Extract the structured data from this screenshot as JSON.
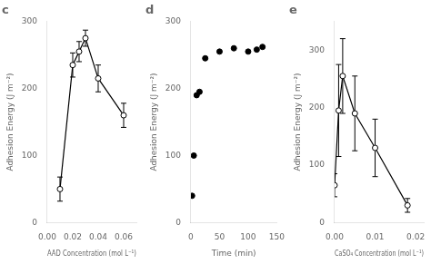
{
  "chart_data": [
    {
      "type": "line",
      "title": "c",
      "x": [
        0.01,
        0.02,
        0.025,
        0.03,
        0.04,
        0.06
      ],
      "values": [
        50,
        235,
        255,
        275,
        215,
        160
      ],
      "yerr": [
        18,
        18,
        15,
        12,
        20,
        18
      ],
      "xlabel": "AAD Concentration (mol L⁻¹)",
      "ylabel": "Adhesion Energy (J m⁻²)",
      "xlim": [
        0,
        0.07
      ],
      "ylim": [
        0,
        300
      ],
      "xticks": [
        {
          "value": 0,
          "label": "0.00"
        },
        0.02,
        0.04,
        0.06
      ],
      "yticks": [
        0,
        100,
        200,
        300
      ],
      "color": "#000000",
      "marker": "open_circle",
      "line_style": "solid",
      "grid": false
    },
    {
      "type": "scatter",
      "title": "d",
      "x": [
        2,
        5,
        10,
        15,
        25,
        50,
        75,
        100,
        115,
        125
      ],
      "values": [
        40,
        100,
        190,
        195,
        245,
        255,
        260,
        255,
        258,
        262
      ],
      "xlabel": "Time (min)",
      "ylabel": "Adhesion Energy (J m⁻²)",
      "xlim": [
        0,
        150
      ],
      "ylim": [
        0,
        300
      ],
      "xticks": [
        0,
        50,
        100,
        150
      ],
      "yticks": [
        0,
        100,
        200,
        300
      ],
      "color": "#000000",
      "marker": "circle",
      "grid": false
    },
    {
      "type": "line",
      "title": "e",
      "x": [
        0.0,
        0.001,
        0.002,
        0.005,
        0.01,
        0.018
      ],
      "values": [
        65,
        195,
        255,
        190,
        130,
        30
      ],
      "yerr": [
        20,
        80,
        65,
        65,
        50,
        12
      ],
      "xlabel": "CaSO₄ Concentration (mol L⁻¹)",
      "ylabel": "Adhesion Energy (J m⁻²)",
      "xlim": [
        0,
        0.022
      ],
      "ylim": [
        0,
        350
      ],
      "xticks": [
        {
          "value": 0,
          "label": "0.00"
        },
        0.01,
        0.02
      ],
      "yticks": [
        0,
        100,
        200,
        300
      ],
      "color": "#000000",
      "marker": "open_circle",
      "line_style": "solid",
      "grid": false
    }
  ]
}
